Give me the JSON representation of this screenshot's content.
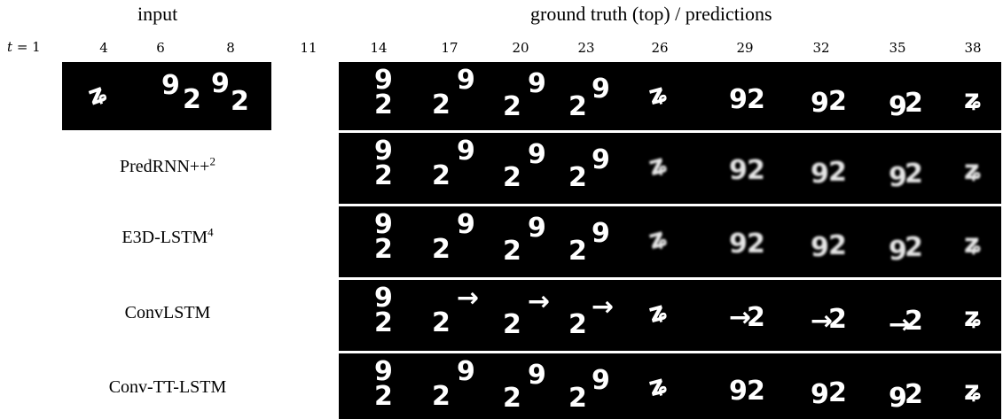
{
  "header": {
    "input_label": "input",
    "ground_truth_label": "ground truth (top) / predictions"
  },
  "timestep_label": {
    "var": "t",
    "value": "= 1"
  },
  "input_ticks": [
    "4",
    "6",
    "8",
    "11"
  ],
  "output_ticks": [
    "14",
    "17",
    "20",
    "23",
    "26",
    "29",
    "32",
    "35",
    "38"
  ],
  "input_strip": {
    "description_digits": [
      "9",
      "2"
    ]
  },
  "rows": [
    {
      "id": "ground-truth",
      "name": "",
      "superscript": ""
    },
    {
      "id": "predrnn",
      "name": "PredRNN++",
      "superscript": "2"
    },
    {
      "id": "e3d-lstm",
      "name": "E3D-LSTM",
      "superscript": "4"
    },
    {
      "id": "convlstm",
      "name": "ConvLSTM",
      "superscript": ""
    },
    {
      "id": "conv-tt-lstm",
      "name": "Conv-TT-LSTM",
      "superscript": ""
    }
  ],
  "colors": {
    "background": "#ffffff",
    "frame": "#000000",
    "digit": "#ffffff"
  }
}
